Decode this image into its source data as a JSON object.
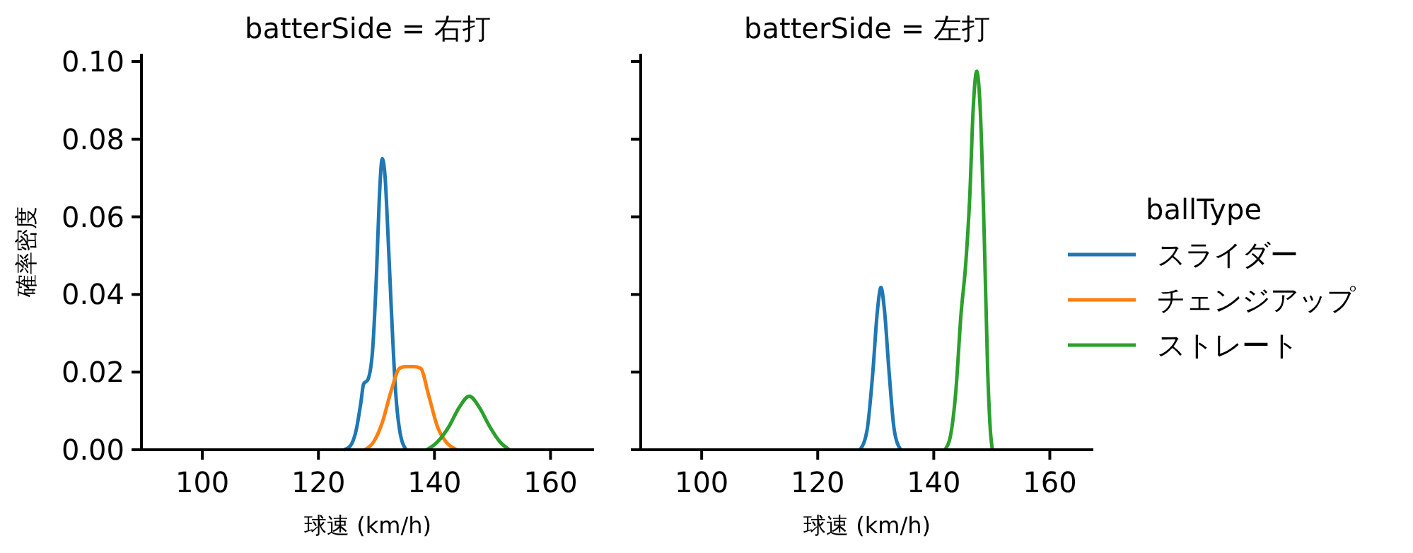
{
  "chart_data": [
    {
      "type": "line",
      "title": "batterSide = 右打",
      "xlabel": "球速 (km/h)",
      "ylabel": "確率密度",
      "xlim": [
        89.5,
        167.5
      ],
      "xticks": [
        100,
        120,
        140,
        160
      ],
      "ylim": [
        0,
        0.102
      ],
      "yticks": [
        {
          "value": 0,
          "label": "0.00"
        },
        {
          "value": 0.02,
          "label": "0.02"
        },
        {
          "value": 0.04,
          "label": "0.04"
        },
        {
          "value": 0.06,
          "label": "0.06"
        },
        {
          "value": 0.08,
          "label": "0.08"
        },
        {
          "value": 0.1,
          "label": "0.10"
        }
      ],
      "grid": false,
      "legend": "right",
      "legend_title": "ballType",
      "marker": "none",
      "series": [
        {
          "name": "スライダー",
          "color": "#1f77b4",
          "x": [
            124.4,
            125.5,
            126.5,
            127.3,
            127.8,
            128.5,
            129.3,
            130,
            130.5,
            131,
            131.5,
            132,
            132.6,
            133.3,
            134,
            135.1
          ],
          "values": [
            0,
            0.001,
            0.005,
            0.012,
            0.017,
            0.018,
            0.025,
            0.045,
            0.065,
            0.075,
            0.07,
            0.055,
            0.035,
            0.015,
            0.005,
            0
          ]
        },
        {
          "name": "チェンジアップ",
          "color": "#ff7f0e",
          "x": [
            128,
            129.5,
            131,
            132.5,
            134,
            135,
            136.5,
            137.6,
            139,
            140.5,
            142,
            143.9
          ],
          "values": [
            0,
            0.002,
            0.007,
            0.015,
            0.021,
            0.0214,
            0.0214,
            0.021,
            0.014,
            0.006,
            0.002,
            0
          ]
        },
        {
          "name": "ストレート",
          "color": "#2ca02c",
          "x": [
            138.7,
            140.5,
            142.5,
            144.3,
            146,
            147.7,
            149.5,
            151.3,
            152.9
          ],
          "values": [
            0,
            0.002,
            0.006,
            0.011,
            0.0138,
            0.011,
            0.006,
            0.002,
            0
          ]
        }
      ]
    },
    {
      "type": "line",
      "title": "batterSide = 左打",
      "xlabel": "球速 (km/h)",
      "xlim": [
        89.5,
        167.5
      ],
      "xticks": [
        100,
        120,
        140,
        160
      ],
      "ylim": [
        0,
        0.102
      ],
      "yticks": [
        {
          "value": 0,
          "label": null
        },
        {
          "value": 0.02,
          "label": null
        },
        {
          "value": 0.04,
          "label": null
        },
        {
          "value": 0.06,
          "label": null
        },
        {
          "value": 0.08,
          "label": null
        },
        {
          "value": 0.1,
          "label": null
        }
      ],
      "tick_labels": "x",
      "grid": false,
      "marker": "none",
      "series": [
        {
          "color": "#1f77b4",
          "x": [
            127.3,
            128.5,
            129.5,
            130.3,
            130.9,
            131.5,
            132.3,
            133.2,
            134.3
          ],
          "values": [
            0,
            0.005,
            0.02,
            0.036,
            0.0418,
            0.036,
            0.02,
            0.005,
            0
          ]
        },
        {
          "color": "#2ca02c",
          "x": [
            141.9,
            142.8,
            143.8,
            144.7,
            145.5,
            146.2,
            146.8,
            147.4,
            148,
            148.7,
            149.3,
            149.8,
            150.1
          ],
          "values": [
            0,
            0.003,
            0.015,
            0.035,
            0.0477,
            0.065,
            0.088,
            0.0975,
            0.088,
            0.055,
            0.02,
            0.004,
            0
          ]
        }
      ]
    }
  ]
}
